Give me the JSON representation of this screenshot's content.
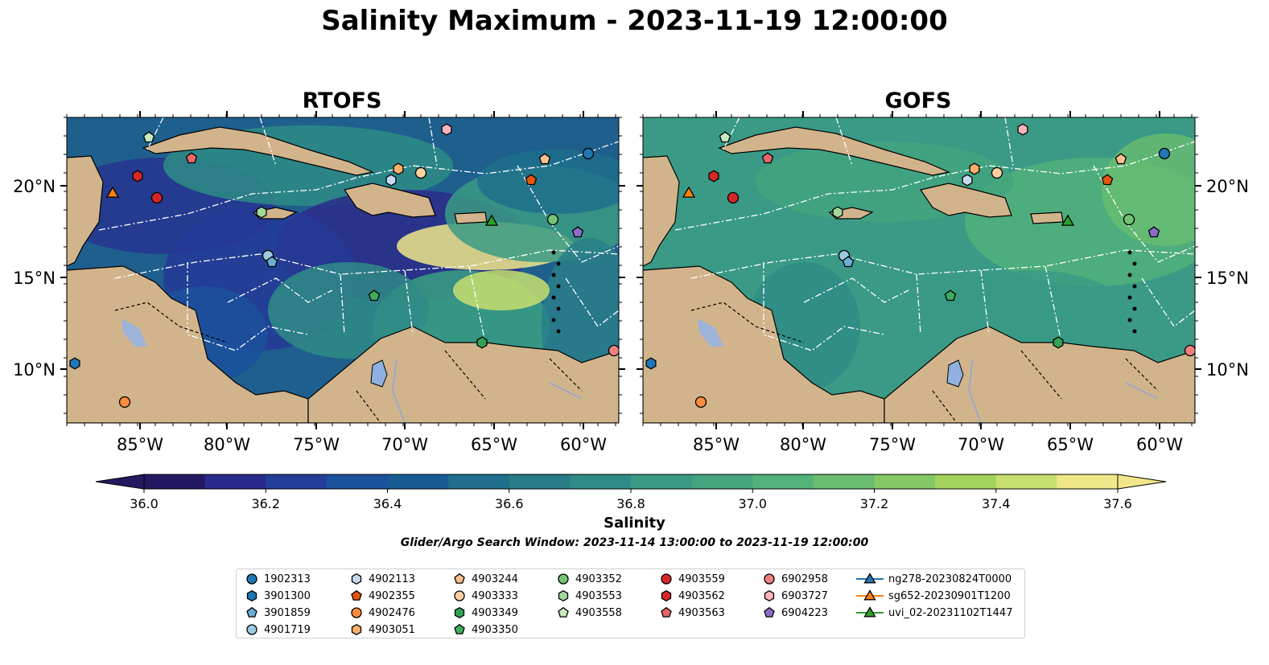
{
  "title": "Salinity Maximum - 2023-11-19 12:00:00",
  "panels": [
    {
      "title": "RTOFS"
    },
    {
      "title": "GOFS"
    }
  ],
  "axes": {
    "lon_ticks": [
      "85°W",
      "80°W",
      "75°W",
      "70°W",
      "65°W",
      "60°W"
    ],
    "lat_ticks": [
      "20°N",
      "15°N",
      "10°N"
    ]
  },
  "colorbar": {
    "label": "Salinity",
    "ticks": [
      "36.0",
      "36.2",
      "36.4",
      "36.6",
      "36.8",
      "37.0",
      "37.2",
      "37.4",
      "37.6"
    ],
    "colors": [
      "#241862",
      "#2a2a8c",
      "#233f9a",
      "#1b519d",
      "#185c93",
      "#1f6e8c",
      "#287c88",
      "#2f8b86",
      "#389a84",
      "#44a47e",
      "#52b27a",
      "#69bd6f",
      "#85c866",
      "#a3d35d",
      "#c7df6e",
      "#efe78a"
    ]
  },
  "search_window": "Glider/Argo Search Window: 2023-11-14 13:00:00 to 2023-11-19 12:00:00",
  "legend": [
    {
      "label": "1902313",
      "marker": "circle",
      "color": "#1f77b4"
    },
    {
      "label": "3901300",
      "marker": "hexagon",
      "color": "#1f77b4"
    },
    {
      "label": "3901859",
      "marker": "pentagon",
      "color": "#6baed6"
    },
    {
      "label": "4901719",
      "marker": "circle",
      "color": "#9ecae1"
    },
    {
      "label": "4902113",
      "marker": "hexagon",
      "color": "#c6dbef"
    },
    {
      "label": "4902355",
      "marker": "pentagon",
      "color": "#e6550d"
    },
    {
      "label": "4902476",
      "marker": "circle",
      "color": "#fd8d3c"
    },
    {
      "label": "4903051",
      "marker": "hexagon",
      "color": "#fdae6b"
    },
    {
      "label": "4903244",
      "marker": "pentagon",
      "color": "#fdbf8c"
    },
    {
      "label": "4903333",
      "marker": "circle",
      "color": "#fdd0a2"
    },
    {
      "label": "4903349",
      "marker": "hexagon",
      "color": "#31a354"
    },
    {
      "label": "4903350",
      "marker": "pentagon",
      "color": "#41ab5d"
    },
    {
      "label": "4903352",
      "marker": "circle",
      "color": "#74c476"
    },
    {
      "label": "4903553",
      "marker": "hexagon",
      "color": "#a1d99b"
    },
    {
      "label": "4903558",
      "marker": "pentagon",
      "color": "#c7e9c0"
    },
    {
      "label": "4903559",
      "marker": "circle",
      "color": "#d62728"
    },
    {
      "label": "4903562",
      "marker": "hexagon",
      "color": "#d62728"
    },
    {
      "label": "4903563",
      "marker": "pentagon",
      "color": "#e7676a"
    },
    {
      "label": "6902958",
      "marker": "circle",
      "color": "#f08080"
    },
    {
      "label": "6903727",
      "marker": "hexagon",
      "color": "#fbb4b9"
    },
    {
      "label": "6904223",
      "marker": "pentagon",
      "color": "#8c6bc8"
    },
    {
      "label": "ng278-20230824T0000",
      "marker": "triangle-line",
      "color": "#1f77b4"
    },
    {
      "label": "sg652-20230901T1200",
      "marker": "triangle-line",
      "color": "#ff7f0e"
    },
    {
      "label": "uvi_02-20231102T1447",
      "marker": "triangle-line",
      "color": "#2ca02c"
    }
  ]
}
